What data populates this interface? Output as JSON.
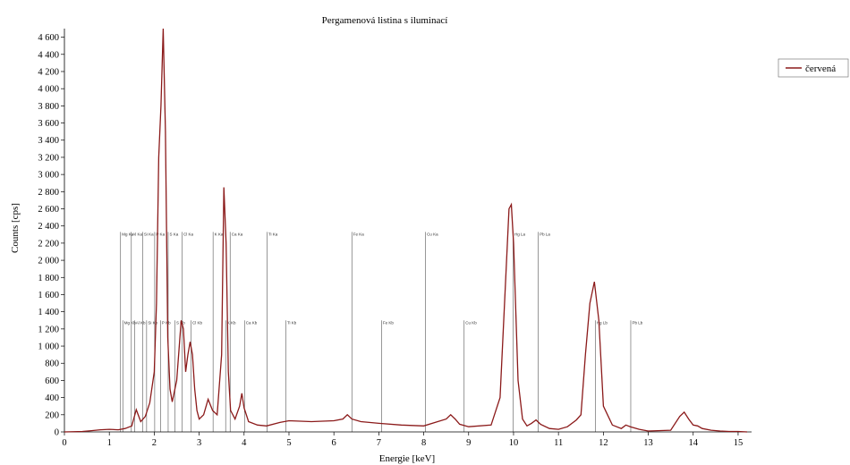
{
  "chart_data": {
    "type": "line",
    "title": "Pergamenová listina s iluminací",
    "xlabel": "Energie [keV]",
    "ylabel": "Counts [cps]",
    "xlim": [
      0,
      15.3
    ],
    "ylim": [
      0,
      4700
    ],
    "xticks": [
      0,
      1,
      2,
      3,
      4,
      5,
      6,
      7,
      8,
      9,
      10,
      11,
      12,
      13,
      14,
      15
    ],
    "yticks": [
      0,
      200,
      400,
      600,
      800,
      1000,
      1200,
      1400,
      1600,
      1800,
      2000,
      2200,
      2400,
      2600,
      2800,
      3000,
      3200,
      3400,
      3600,
      3800,
      4000,
      4200,
      4400,
      4600
    ],
    "ytick_labels": [
      "0",
      "200",
      "400",
      "600",
      "800",
      "1 000",
      "1 200",
      "1 400",
      "1 600",
      "1 800",
      "2 000",
      "2 200",
      "2 400",
      "2 600",
      "2 800",
      "3 000",
      "3 200",
      "3 400",
      "3 600",
      "3 800",
      "4 000",
      "4 200",
      "4 400",
      "4 600"
    ],
    "grid": false,
    "legend_position": "top-right",
    "series": [
      {
        "name": "červená",
        "color": "#8b1a1a",
        "x": [
          0.0,
          0.4,
          0.6,
          0.8,
          1.0,
          1.2,
          1.35,
          1.5,
          1.6,
          1.7,
          1.8,
          1.9,
          2.0,
          2.05,
          2.1,
          2.15,
          2.2,
          2.25,
          2.3,
          2.35,
          2.4,
          2.5,
          2.6,
          2.65,
          2.7,
          2.75,
          2.8,
          2.85,
          2.9,
          2.95,
          3.0,
          3.1,
          3.2,
          3.3,
          3.4,
          3.5,
          3.55,
          3.6,
          3.65,
          3.7,
          3.8,
          3.9,
          3.95,
          4.0,
          4.1,
          4.3,
          4.5,
          4.8,
          5.0,
          5.5,
          6.0,
          6.2,
          6.3,
          6.4,
          6.6,
          7.0,
          7.5,
          8.0,
          8.5,
          8.6,
          8.7,
          8.8,
          9.0,
          9.5,
          9.7,
          9.8,
          9.9,
          9.95,
          10.0,
          10.1,
          10.2,
          10.3,
          10.4,
          10.5,
          10.6,
          10.8,
          11.0,
          11.2,
          11.4,
          11.5,
          11.6,
          11.7,
          11.8,
          11.9,
          12.0,
          12.2,
          12.4,
          12.5,
          12.6,
          12.8,
          13.0,
          13.5,
          13.7,
          13.8,
          13.9,
          14.0,
          14.1,
          14.2,
          14.4,
          14.6,
          14.8,
          15.0,
          15.2
        ],
        "values": [
          0,
          5,
          15,
          25,
          30,
          25,
          40,
          70,
          260,
          120,
          180,
          340,
          700,
          1500,
          3200,
          3800,
          4700,
          3500,
          1100,
          500,
          350,
          600,
          1300,
          1200,
          700,
          900,
          1050,
          900,
          500,
          250,
          150,
          200,
          380,
          250,
          200,
          900,
          2850,
          2200,
          700,
          250,
          150,
          300,
          450,
          280,
          120,
          80,
          70,
          110,
          130,
          120,
          130,
          150,
          200,
          150,
          120,
          100,
          80,
          70,
          150,
          200,
          150,
          90,
          60,
          80,
          400,
          1500,
          2600,
          2650,
          2200,
          600,
          150,
          70,
          100,
          140,
          90,
          40,
          30,
          60,
          140,
          200,
          900,
          1500,
          1750,
          1300,
          300,
          80,
          40,
          80,
          60,
          30,
          10,
          20,
          180,
          230,
          150,
          80,
          70,
          40,
          20,
          10,
          5,
          5,
          0
        ]
      }
    ],
    "element_labels_upper": [
      {
        "x": 1.25,
        "text": "Mg Ka"
      },
      {
        "x": 1.49,
        "text": "Al Ka"
      },
      {
        "x": 1.74,
        "text": "Si Ka"
      },
      {
        "x": 2.01,
        "text": "P Ka"
      },
      {
        "x": 2.31,
        "text": "S Ka"
      },
      {
        "x": 2.62,
        "text": "Cl Ka"
      },
      {
        "x": 3.31,
        "text": "K Ka"
      },
      {
        "x": 3.69,
        "text": "Ca Ka"
      },
      {
        "x": 4.51,
        "text": "Ti Ka"
      },
      {
        "x": 6.4,
        "text": "Fe Ka"
      },
      {
        "x": 8.04,
        "text": "Cu Ka"
      },
      {
        "x": 9.99,
        "text": "Hg La"
      },
      {
        "x": 10.55,
        "text": "Pb La"
      }
    ],
    "element_labels_lower": [
      {
        "x": 1.3,
        "text": "Mg Kb"
      },
      {
        "x": 1.56,
        "text": "Al Kb"
      },
      {
        "x": 1.83,
        "text": "Si Kb"
      },
      {
        "x": 2.14,
        "text": "P Kb"
      },
      {
        "x": 2.46,
        "text": "S Kb"
      },
      {
        "x": 2.82,
        "text": "Cl Kb"
      },
      {
        "x": 3.59,
        "text": "K Kb"
      },
      {
        "x": 4.01,
        "text": "Ca Kb"
      },
      {
        "x": 4.93,
        "text": "Ti Kb"
      },
      {
        "x": 7.06,
        "text": "Fe Kb"
      },
      {
        "x": 8.9,
        "text": "Cu Kb"
      },
      {
        "x": 11.82,
        "text": "Hg Lb"
      },
      {
        "x": 12.61,
        "text": "Pb Lb"
      }
    ]
  }
}
